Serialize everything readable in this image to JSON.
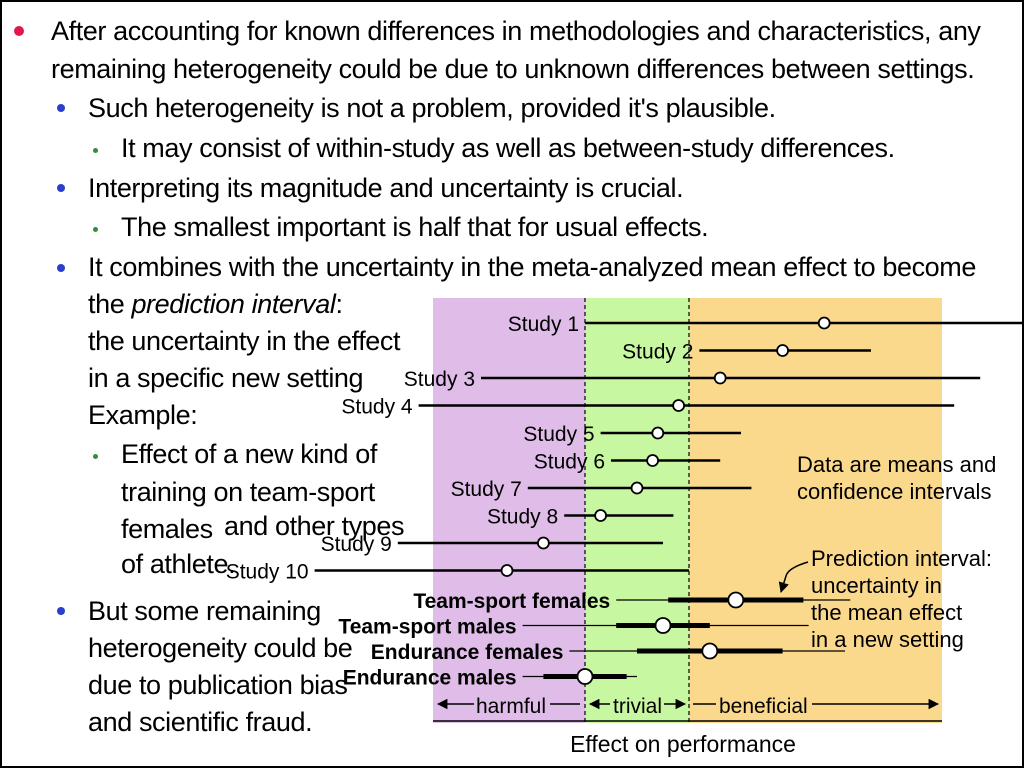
{
  "slide": {
    "bullets": [
      {
        "line1": "After accounting for known differences in methodologies and characteristics, any",
        "line2": "remaining heterogeneity could be due to unknown differences between settings."
      },
      {
        "text": "Such heterogeneity is not a problem, provided it's plausible."
      },
      {
        "text": "It may consist of within-study as well as between-study differences."
      },
      {
        "text": "Interpreting its magnitude and uncertainty is crucial."
      },
      {
        "text": "The smallest important is half that for usual effects."
      },
      {
        "line1": "It combines with the uncertainty in the meta-analyzed mean effect to become",
        "line2_prefix": "the ",
        "line2_italic": "prediction interval",
        "line2_suffix": ":",
        "line3": "the uncertainty in the effect",
        "line4": "in a specific new setting",
        "line5": "Example:"
      },
      {
        "line1": "Effect of a new kind of",
        "line2": "training on team-sport",
        "line3a": "females",
        "line3b": "and other types",
        "line4": "of athlete."
      },
      {
        "line1": "But some remaining",
        "line2": "heterogeneity could be",
        "line3": "due to publication bias",
        "line4": "and scientific fraud."
      }
    ]
  },
  "figure": {
    "colors": {
      "harmful": "#dfbde8",
      "trivial": "#c8f7a2",
      "beneficial": "#fbd98c",
      "line": "#000000",
      "marker": "#ffffff"
    },
    "zones": {
      "harmful": "harmful",
      "trivial": "trivial",
      "beneficial": "beneficial"
    },
    "xlabel": "Effect on performance",
    "annotation_ci": {
      "line1": "Data are means and",
      "line2": "confidence intervals"
    },
    "annotation_pi": {
      "line1": "Prediction interval:",
      "line2": "uncertainty in",
      "line3": "the mean effect",
      "line4": "in a new setting"
    }
  },
  "chart_data": {
    "type": "forest",
    "xlabel": "Effect on performance",
    "thresholds": [
      -1,
      1
    ],
    "xlim": [
      -7.8,
      12.1
    ],
    "studies": [
      {
        "label": "Study 1",
        "mean": 3.6,
        "lower": -1.0,
        "upper": 9.0
      },
      {
        "label": "Study 2",
        "mean": 2.8,
        "lower": 1.2,
        "upper": 4.5
      },
      {
        "label": "Study 3",
        "mean": 1.6,
        "lower": -3.0,
        "upper": 6.6
      },
      {
        "label": "Study 4",
        "mean": 0.8,
        "lower": -4.2,
        "upper": 6.1
      },
      {
        "label": "Study 5",
        "mean": 0.4,
        "lower": -0.7,
        "upper": 2.0
      },
      {
        "label": "Study 6",
        "mean": 0.3,
        "lower": -0.5,
        "upper": 1.6
      },
      {
        "label": "Study 7",
        "mean": 0.0,
        "lower": -2.1,
        "upper": 2.2
      },
      {
        "label": "Study 8",
        "mean": -0.7,
        "lower": -1.4,
        "upper": 0.7
      },
      {
        "label": "Study 9",
        "mean": -1.8,
        "lower": -4.6,
        "upper": 0.5
      },
      {
        "label": "Study 10",
        "mean": -2.5,
        "lower": -6.2,
        "upper": 1.0
      }
    ],
    "summaries": [
      {
        "label": "Team-sport females",
        "mean": 1.9,
        "ci_lower": 0.6,
        "ci_upper": 3.2,
        "pi_lower": -0.4,
        "pi_upper": 4.1
      },
      {
        "label": "Team-sport males",
        "mean": 0.5,
        "ci_lower": -0.4,
        "ci_upper": 1.4,
        "pi_lower": -2.2,
        "pi_upper": 3.3
      },
      {
        "label": "Endurance females",
        "mean": 1.4,
        "ci_lower": 0.0,
        "ci_upper": 2.8,
        "pi_lower": -1.3,
        "pi_upper": 4.0
      },
      {
        "label": "Endurance males",
        "mean": -1.0,
        "ci_lower": -1.8,
        "ci_upper": -0.2,
        "pi_lower": -2.2,
        "pi_upper": 0.0
      }
    ]
  }
}
